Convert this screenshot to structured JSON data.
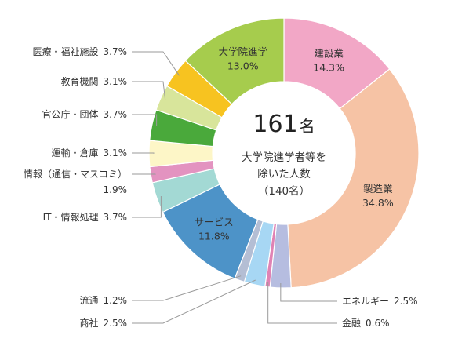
{
  "chart_data": {
    "type": "pie",
    "center": {
      "total": "161",
      "unit": "名",
      "caption_line1": "大学院進学者等を",
      "caption_line2": "除いた人数",
      "caption_line3": "（140名）"
    },
    "slices": [
      {
        "name": "建設業",
        "value": 14.3,
        "value_text": "14.3%",
        "color": "#f2a7c6"
      },
      {
        "name": "製造業",
        "value": 34.8,
        "value_text": "34.8%",
        "color": "#f6c3a5"
      },
      {
        "name": "エネルギー",
        "value": 2.5,
        "value_text": "2.5%",
        "color": "#b6bde0"
      },
      {
        "name": "金融",
        "value": 0.6,
        "value_text": "0.6%",
        "color": "#e083b4"
      },
      {
        "name": "商社",
        "value": 2.5,
        "value_text": "2.5%",
        "color": "#a7d7f4"
      },
      {
        "name": "流通",
        "value": 1.2,
        "value_text": "1.2%",
        "color": "#b4bed4"
      },
      {
        "name": "サービス",
        "value": 11.8,
        "value_text": "11.8%",
        "color": "#4d93c8"
      },
      {
        "name": "IT・情報処理",
        "value": 3.7,
        "value_text": "3.7%",
        "color": "#a3d9d4"
      },
      {
        "name": "情報（通信・マスコミ）",
        "value": 1.9,
        "value_text": "1.9%",
        "color": "#e393c0"
      },
      {
        "name": "運輸・倉庫",
        "value": 3.1,
        "value_text": "3.1%",
        "color": "#fdf6c7"
      },
      {
        "name": "官公庁・団体",
        "value": 3.7,
        "value_text": "3.7%",
        "color": "#4aa93b"
      },
      {
        "name": "教育機関",
        "value": 3.1,
        "value_text": "3.1%",
        "color": "#d8e59b"
      },
      {
        "name": "医療・福祉施設",
        "value": 3.7,
        "value_text": "3.7%",
        "color": "#f7c320"
      },
      {
        "name": "大学院進学",
        "value": 13.0,
        "value_text": "13.0%",
        "color": "#a6cc4d"
      }
    ]
  }
}
